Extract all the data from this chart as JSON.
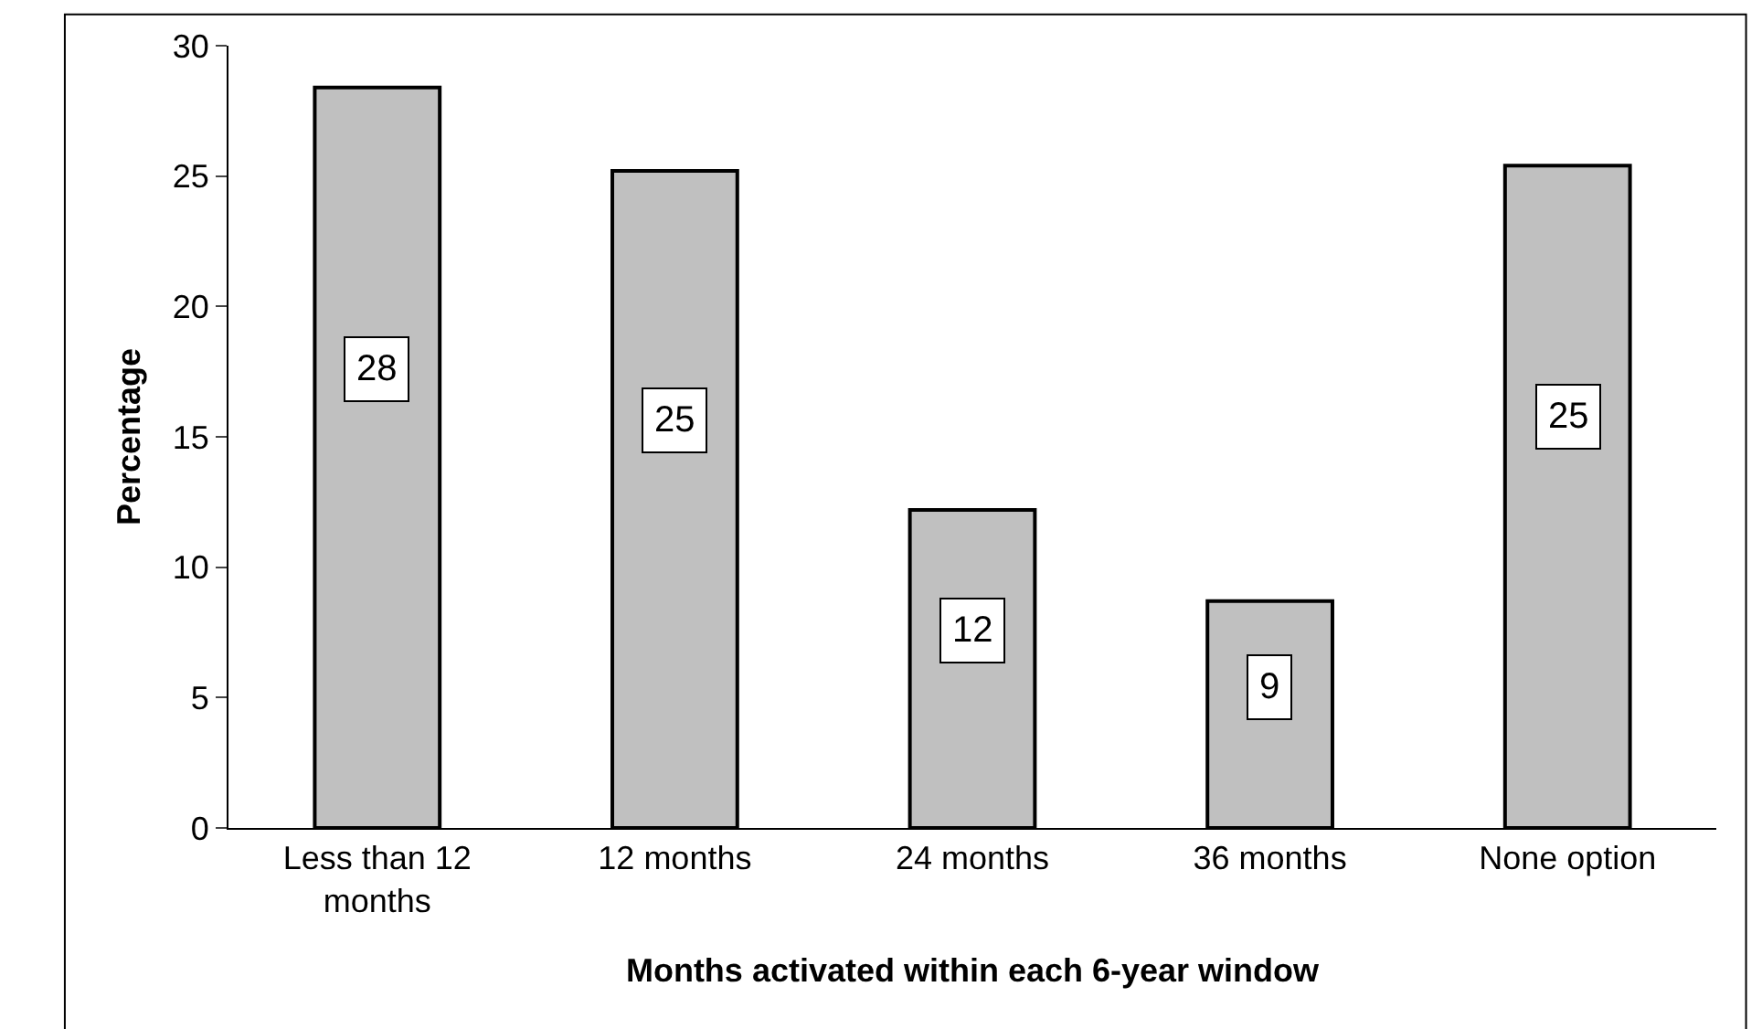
{
  "chart_data": {
    "type": "bar",
    "xlabel": "Months activated within each 6-year window",
    "ylabel": "Percentage",
    "categories": [
      "Less than 12 months",
      "12 months",
      "24 months",
      "36 months",
      "None option"
    ],
    "values": [
      28.4,
      25.2,
      12.2,
      8.7,
      25.4
    ],
    "value_labels": [
      "28",
      "25",
      "12",
      "9",
      "25"
    ],
    "color": "#c0c0c0",
    "ylim": [
      0,
      30
    ],
    "yticks": [
      0,
      5,
      10,
      15,
      20,
      25,
      30
    ],
    "grid": false
  }
}
